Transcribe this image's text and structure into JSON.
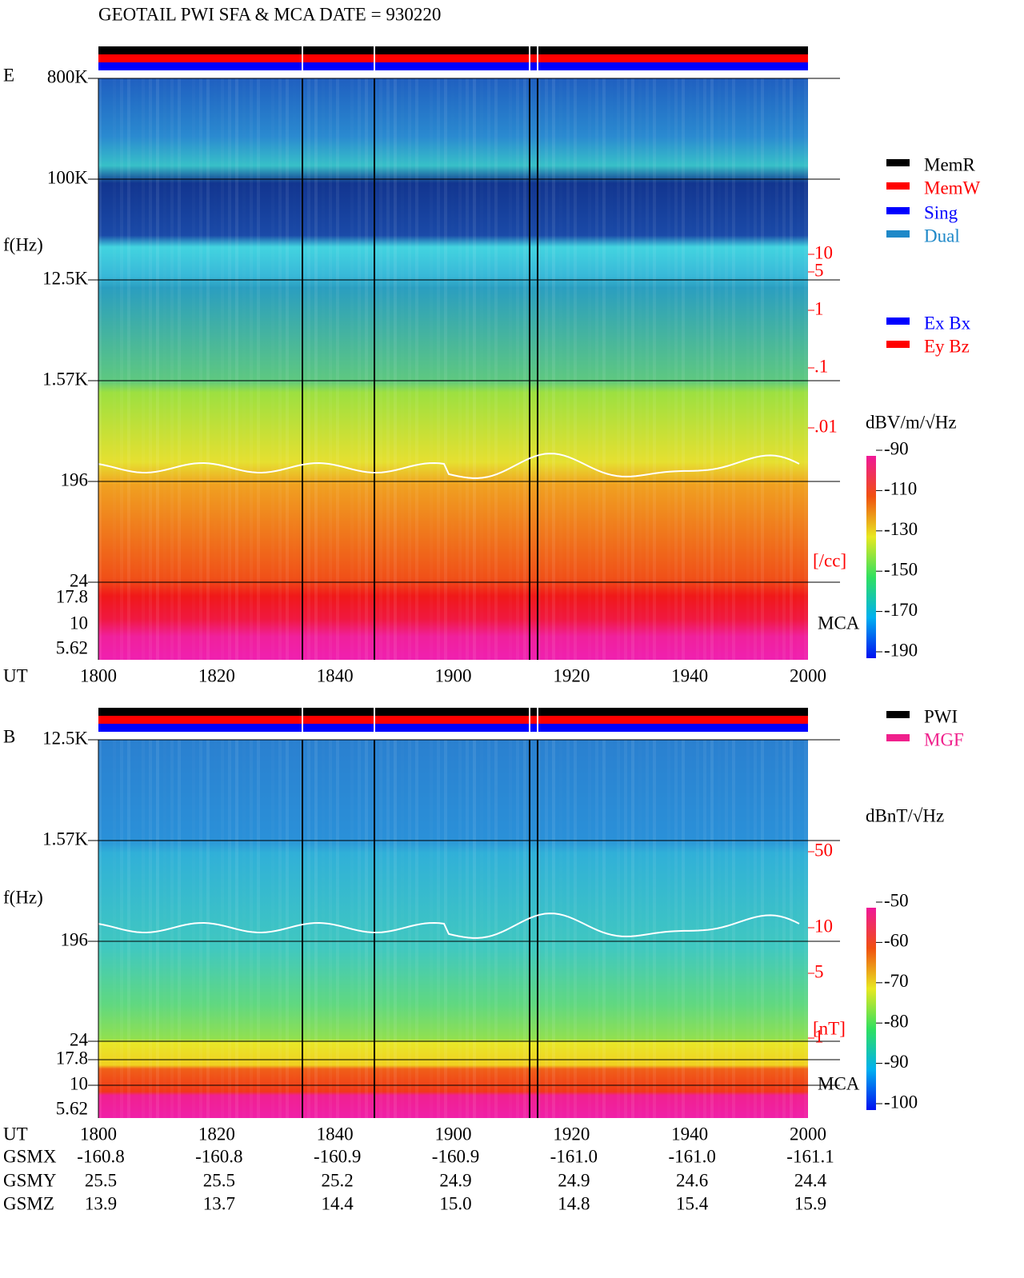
{
  "header": {
    "title": "GEOTAIL  PWI SFA & MCA   DATE = 930220"
  },
  "panels": [
    {
      "label": "E",
      "y_label": "f(Hz)",
      "time_label": "UT",
      "freq_ticks": [
        "800K",
        "100K",
        "12.5K",
        "1.57K",
        "196",
        "24",
        "17.8",
        "10",
        "5.62"
      ],
      "time_ticks": [
        "1800",
        "1820",
        "1840",
        "1900",
        "1920",
        "1940",
        "2000"
      ],
      "mca_label": "MCA",
      "density_ticks": [
        "10",
        "5",
        "1",
        ".1",
        ".01"
      ],
      "density_unit": "[/cc]",
      "colorbar": {
        "unit": "dBV/m/√Hz",
        "ticks": [
          -90,
          -110,
          -130,
          -150,
          -170,
          -190
        ]
      }
    },
    {
      "label": "B",
      "y_label": "f(Hz)",
      "time_label": "UT",
      "freq_ticks": [
        "12.5K",
        "1.57K",
        "196",
        "24",
        "17.8",
        "10",
        "5.62"
      ],
      "time_ticks": [
        "1800",
        "1820",
        "1840",
        "1900",
        "1920",
        "1940",
        "2000"
      ],
      "mca_label": "MCA",
      "density_ticks": [
        "50",
        "10",
        "5",
        "1"
      ],
      "density_unit": "[nT]",
      "colorbar": {
        "unit": "dBnT/√Hz",
        "ticks": [
          -50,
          -60,
          -70,
          -80,
          -90,
          -100
        ]
      }
    }
  ],
  "legend_status": [
    "MemR",
    "MemW",
    "Sing",
    "Dual"
  ],
  "legend_components": [
    "Ex Bx",
    "Ey Bz"
  ],
  "legend_source": [
    "PWI",
    "MGF"
  ],
  "orbit": {
    "rows": [
      {
        "label": "GSMX",
        "values": [
          "-160.8",
          "-160.8",
          "-160.9",
          "-160.9",
          "-161.0",
          "-161.0",
          "-161.1"
        ]
      },
      {
        "label": "GSMY",
        "values": [
          "25.5",
          "25.5",
          "25.2",
          "24.9",
          "24.9",
          "24.6",
          "24.4"
        ]
      },
      {
        "label": "GSMZ",
        "values": [
          "13.9",
          "13.7",
          "14.4",
          "15.0",
          "14.8",
          "15.4",
          "15.9"
        ]
      }
    ]
  }
}
